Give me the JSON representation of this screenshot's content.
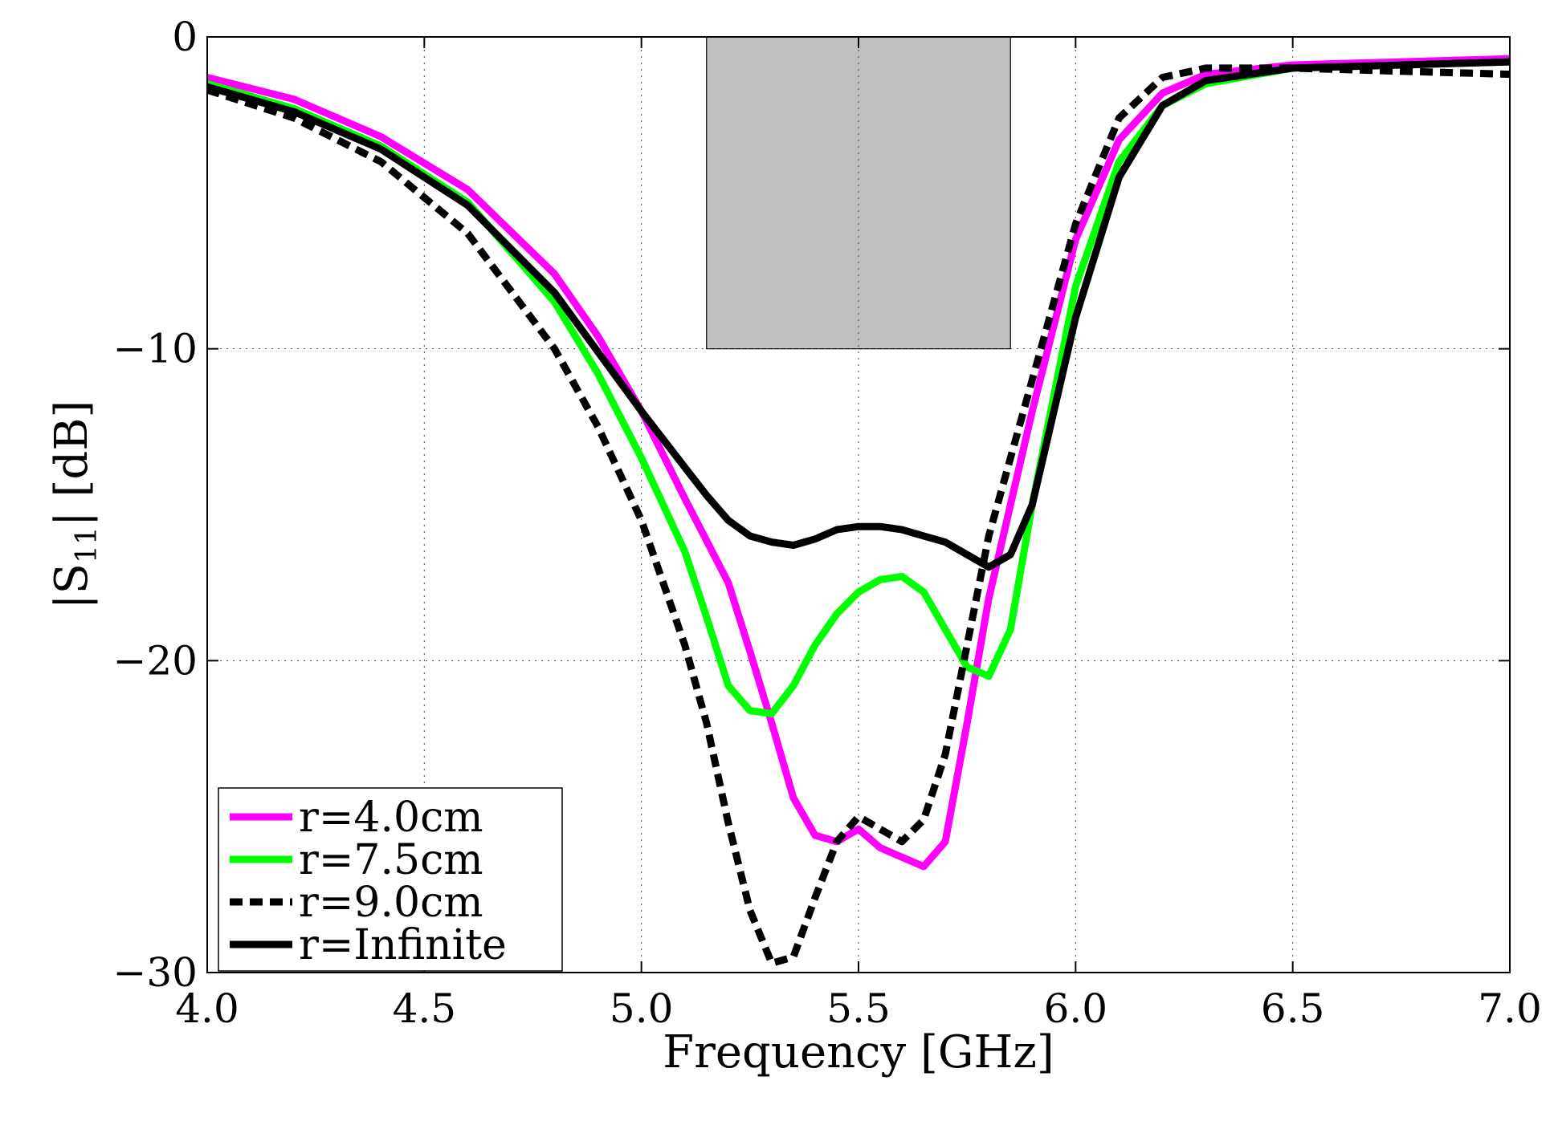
{
  "chart_data": {
    "type": "line",
    "title": "",
    "xlabel": "Frequency [GHz]",
    "ylabel": "|S",
    "ylabel_sub": "11",
    "ylabel_tail": "| [dB]",
    "xlim": [
      4.0,
      7.0
    ],
    "ylim": [
      -30,
      0
    ],
    "xticks": [
      4.0,
      4.5,
      5.0,
      5.5,
      6.0,
      6.5,
      7.0
    ],
    "xtick_labels": [
      "4.0",
      "4.5",
      "5.0",
      "5.5",
      "6.0",
      "6.5",
      "7.0"
    ],
    "yticks": [
      0,
      -10,
      -20,
      -30
    ],
    "ytick_labels": [
      "0",
      "−10",
      "−20",
      "−30"
    ],
    "grid": true,
    "shaded_region": {
      "x": [
        5.15,
        5.85
      ],
      "y": [
        -10,
        0
      ],
      "color": "#c0c0c0"
    },
    "legend_position": "bottom-left",
    "series": [
      {
        "name": "r=4.0cm",
        "color": "#ff00ff",
        "dash": "solid",
        "x": [
          4.0,
          4.2,
          4.4,
          4.6,
          4.8,
          4.9,
          5.0,
          5.1,
          5.2,
          5.25,
          5.3,
          5.35,
          5.4,
          5.45,
          5.5,
          5.55,
          5.6,
          5.65,
          5.7,
          5.75,
          5.8,
          5.9,
          6.0,
          6.1,
          6.2,
          6.3,
          6.5,
          7.0
        ],
        "values": [
          -1.3,
          -2.0,
          -3.2,
          -4.9,
          -7.6,
          -9.6,
          -12.0,
          -14.8,
          -17.5,
          -19.7,
          -22.0,
          -24.4,
          -25.6,
          -25.8,
          -25.4,
          -26.0,
          -26.3,
          -26.6,
          -25.8,
          -22.0,
          -18.0,
          -12.0,
          -6.5,
          -3.3,
          -1.8,
          -1.2,
          -0.9,
          -0.7
        ]
      },
      {
        "name": "r=7.5cm",
        "color": "#00ff00",
        "dash": "solid",
        "x": [
          4.0,
          4.2,
          4.4,
          4.6,
          4.8,
          4.9,
          5.0,
          5.1,
          5.15,
          5.2,
          5.25,
          5.3,
          5.35,
          5.4,
          5.45,
          5.5,
          5.55,
          5.6,
          5.65,
          5.7,
          5.75,
          5.8,
          5.85,
          5.9,
          6.0,
          6.1,
          6.2,
          6.3,
          6.5,
          7.0
        ],
        "values": [
          -1.5,
          -2.3,
          -3.5,
          -5.3,
          -8.5,
          -10.8,
          -13.5,
          -16.5,
          -18.6,
          -20.8,
          -21.6,
          -21.7,
          -20.8,
          -19.5,
          -18.5,
          -17.8,
          -17.4,
          -17.3,
          -17.8,
          -19.0,
          -20.2,
          -20.5,
          -19.0,
          -15.0,
          -8.0,
          -4.0,
          -2.2,
          -1.5,
          -1.0,
          -0.8
        ]
      },
      {
        "name": "r=9.0cm",
        "color": "#000000",
        "dash": "dashed",
        "x": [
          4.0,
          4.2,
          4.4,
          4.6,
          4.8,
          4.9,
          5.0,
          5.1,
          5.15,
          5.2,
          5.25,
          5.3,
          5.35,
          5.4,
          5.45,
          5.5,
          5.55,
          5.6,
          5.65,
          5.7,
          5.75,
          5.8,
          5.9,
          6.0,
          6.1,
          6.2,
          6.3,
          6.5,
          7.0
        ],
        "values": [
          -1.7,
          -2.6,
          -4.0,
          -6.3,
          -10.0,
          -12.5,
          -15.5,
          -19.5,
          -22.0,
          -25.2,
          -28.0,
          -29.7,
          -29.5,
          -27.6,
          -25.8,
          -25.0,
          -25.4,
          -25.8,
          -25.1,
          -23.0,
          -19.5,
          -16.0,
          -11.0,
          -6.0,
          -2.6,
          -1.3,
          -1.0,
          -1.0,
          -1.2
        ]
      },
      {
        "name": "r=Infinite",
        "color": "#000000",
        "dash": "solid",
        "x": [
          4.0,
          4.2,
          4.4,
          4.6,
          4.8,
          4.9,
          5.0,
          5.1,
          5.15,
          5.2,
          5.25,
          5.3,
          5.35,
          5.4,
          5.45,
          5.5,
          5.55,
          5.6,
          5.65,
          5.7,
          5.75,
          5.8,
          5.85,
          5.9,
          6.0,
          6.1,
          6.2,
          6.3,
          6.5,
          7.0
        ],
        "values": [
          -1.6,
          -2.4,
          -3.6,
          -5.4,
          -8.2,
          -10.1,
          -12.0,
          -13.8,
          -14.7,
          -15.5,
          -16.0,
          -16.2,
          -16.3,
          -16.1,
          -15.8,
          -15.7,
          -15.7,
          -15.8,
          -16.0,
          -16.2,
          -16.6,
          -17.0,
          -16.6,
          -15.0,
          -9.0,
          -4.5,
          -2.2,
          -1.4,
          -1.0,
          -0.8
        ]
      }
    ]
  }
}
